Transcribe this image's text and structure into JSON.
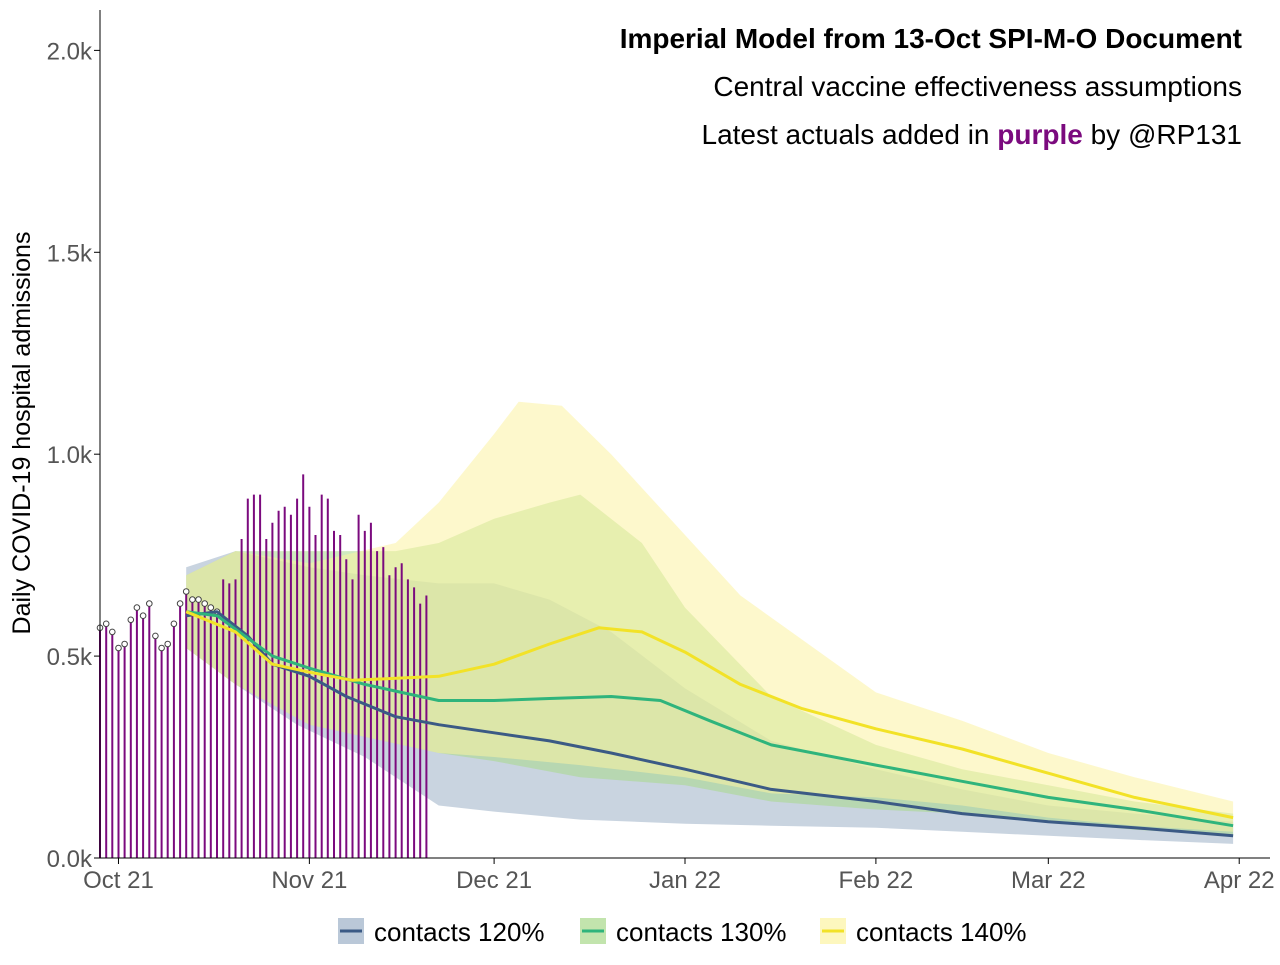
{
  "chart_data": {
    "type": "area",
    "title_lines": [
      "Imperial Model from 13-Oct SPI-M-O Document",
      "Central vaccine effectiveness assumptions"
    ],
    "subtitle_parts": {
      "before": "Latest actuals added in ",
      "highlight": "purple",
      "after": " by @RP131"
    },
    "xlabel": "",
    "ylabel": "Daily COVID-19 hospital admissions",
    "x_axis": {
      "type": "date",
      "range": [
        "2021-09-28",
        "2022-04-06"
      ],
      "ticks": [
        {
          "date": "2021-10-01",
          "label": "Oct 21"
        },
        {
          "date": "2021-11-01",
          "label": "Nov 21"
        },
        {
          "date": "2021-12-01",
          "label": "Dec 21"
        },
        {
          "date": "2022-01-01",
          "label": "Jan 22"
        },
        {
          "date": "2022-02-01",
          "label": "Feb 22"
        },
        {
          "date": "2022-03-01",
          "label": "Mar 22"
        },
        {
          "date": "2022-04-01",
          "label": "Apr 22"
        }
      ]
    },
    "y_axis": {
      "range": [
        0,
        2100
      ],
      "ticks": [
        {
          "value": 0,
          "label": "0.0k"
        },
        {
          "value": 500,
          "label": "0.5k"
        },
        {
          "value": 1000,
          "label": "1.0k"
        },
        {
          "value": 1500,
          "label": "1.5k"
        },
        {
          "value": 2000,
          "label": "2.0k"
        }
      ]
    },
    "grid": false,
    "legend_position": "bottom",
    "series": [
      {
        "name": "contacts 120%",
        "line_color": "#3b5a85",
        "band_color": "#9db1c7",
        "central": [
          [
            "2021-10-12",
            600
          ],
          [
            "2021-10-17",
            610
          ],
          [
            "2021-10-22",
            550
          ],
          [
            "2021-10-26",
            480
          ],
          [
            "2021-11-01",
            450
          ],
          [
            "2021-11-07",
            400
          ],
          [
            "2021-11-15",
            350
          ],
          [
            "2021-11-22",
            330
          ],
          [
            "2021-12-01",
            310
          ],
          [
            "2021-12-10",
            290
          ],
          [
            "2021-12-20",
            260
          ],
          [
            "2022-01-01",
            220
          ],
          [
            "2022-01-15",
            170
          ],
          [
            "2022-02-01",
            140
          ],
          [
            "2022-02-15",
            110
          ],
          [
            "2022-03-01",
            90
          ],
          [
            "2022-03-15",
            75
          ],
          [
            "2022-03-31",
            55
          ]
        ],
        "lower": [
          [
            "2021-10-12",
            520
          ],
          [
            "2021-10-20",
            430
          ],
          [
            "2021-10-30",
            330
          ],
          [
            "2021-11-10",
            250
          ],
          [
            "2021-11-22",
            130
          ],
          [
            "2021-12-01",
            115
          ],
          [
            "2021-12-15",
            95
          ],
          [
            "2022-01-01",
            85
          ],
          [
            "2022-01-15",
            80
          ],
          [
            "2022-02-01",
            75
          ],
          [
            "2022-02-15",
            65
          ],
          [
            "2022-03-01",
            55
          ],
          [
            "2022-03-15",
            45
          ],
          [
            "2022-03-31",
            35
          ]
        ],
        "upper": [
          [
            "2021-10-12",
            720
          ],
          [
            "2021-10-20",
            760
          ],
          [
            "2021-11-01",
            720
          ],
          [
            "2021-11-10",
            700
          ],
          [
            "2021-11-22",
            680
          ],
          [
            "2021-12-01",
            680
          ],
          [
            "2021-12-10",
            640
          ],
          [
            "2021-12-20",
            560
          ],
          [
            "2022-01-01",
            420
          ],
          [
            "2022-01-15",
            290
          ],
          [
            "2022-02-01",
            220
          ],
          [
            "2022-02-15",
            170
          ],
          [
            "2022-03-01",
            130
          ],
          [
            "2022-03-15",
            110
          ],
          [
            "2022-03-31",
            90
          ]
        ]
      },
      {
        "name": "contacts 130%",
        "line_color": "#2fb47c",
        "band_color": "#a8d98a",
        "central": [
          [
            "2021-10-12",
            610
          ],
          [
            "2021-10-17",
            600
          ],
          [
            "2021-10-26",
            500
          ],
          [
            "2021-11-01",
            470
          ],
          [
            "2021-11-10",
            430
          ],
          [
            "2021-11-22",
            390
          ],
          [
            "2021-12-01",
            390
          ],
          [
            "2021-12-10",
            395
          ],
          [
            "2021-12-20",
            400
          ],
          [
            "2021-12-28",
            390
          ],
          [
            "2022-01-05",
            340
          ],
          [
            "2022-01-15",
            280
          ],
          [
            "2022-02-01",
            230
          ],
          [
            "2022-02-15",
            190
          ],
          [
            "2022-03-01",
            150
          ],
          [
            "2022-03-15",
            120
          ],
          [
            "2022-03-31",
            80
          ]
        ],
        "lower": [
          [
            "2021-10-12",
            520
          ],
          [
            "2021-10-20",
            430
          ],
          [
            "2021-11-01",
            330
          ],
          [
            "2021-11-22",
            260
          ],
          [
            "2021-12-01",
            240
          ],
          [
            "2021-12-15",
            200
          ],
          [
            "2022-01-01",
            180
          ],
          [
            "2022-01-15",
            140
          ],
          [
            "2022-02-01",
            120
          ],
          [
            "2022-02-15",
            110
          ],
          [
            "2022-03-01",
            90
          ],
          [
            "2022-03-15",
            70
          ],
          [
            "2022-03-31",
            55
          ]
        ],
        "upper": [
          [
            "2021-10-12",
            700
          ],
          [
            "2021-10-20",
            760
          ],
          [
            "2021-11-01",
            760
          ],
          [
            "2021-11-15",
            760
          ],
          [
            "2021-11-22",
            780
          ],
          [
            "2021-12-01",
            840
          ],
          [
            "2021-12-10",
            880
          ],
          [
            "2021-12-15",
            900
          ],
          [
            "2021-12-25",
            780
          ],
          [
            "2022-01-01",
            620
          ],
          [
            "2022-01-15",
            400
          ],
          [
            "2022-02-01",
            280
          ],
          [
            "2022-02-15",
            220
          ],
          [
            "2022-03-01",
            180
          ],
          [
            "2022-03-15",
            140
          ],
          [
            "2022-03-31",
            110
          ]
        ]
      },
      {
        "name": "contacts 140%",
        "line_color": "#f2e227",
        "band_color": "#fcf3a3",
        "central": [
          [
            "2021-10-12",
            610
          ],
          [
            "2021-10-20",
            560
          ],
          [
            "2021-10-26",
            480
          ],
          [
            "2021-11-01",
            460
          ],
          [
            "2021-11-08",
            440
          ],
          [
            "2021-11-22",
            450
          ],
          [
            "2021-12-01",
            480
          ],
          [
            "2021-12-10",
            530
          ],
          [
            "2021-12-18",
            570
          ],
          [
            "2021-12-25",
            560
          ],
          [
            "2022-01-01",
            510
          ],
          [
            "2022-01-10",
            430
          ],
          [
            "2022-01-20",
            370
          ],
          [
            "2022-02-01",
            320
          ],
          [
            "2022-02-15",
            270
          ],
          [
            "2022-03-01",
            210
          ],
          [
            "2022-03-15",
            150
          ],
          [
            "2022-03-31",
            100
          ]
        ],
        "lower": [
          [
            "2021-10-12",
            520
          ],
          [
            "2021-10-20",
            430
          ],
          [
            "2021-11-01",
            330
          ],
          [
            "2021-11-22",
            260
          ],
          [
            "2021-12-01",
            250
          ],
          [
            "2021-12-15",
            230
          ],
          [
            "2022-01-01",
            200
          ],
          [
            "2022-01-15",
            160
          ],
          [
            "2022-02-01",
            150
          ],
          [
            "2022-02-15",
            130
          ],
          [
            "2022-03-01",
            100
          ],
          [
            "2022-03-15",
            80
          ],
          [
            "2022-03-31",
            65
          ]
        ],
        "upper": [
          [
            "2021-10-12",
            700
          ],
          [
            "2021-10-20",
            760
          ],
          [
            "2021-11-01",
            730
          ],
          [
            "2021-11-15",
            780
          ],
          [
            "2021-11-22",
            880
          ],
          [
            "2021-12-01",
            1050
          ],
          [
            "2021-12-05",
            1130
          ],
          [
            "2021-12-12",
            1120
          ],
          [
            "2021-12-20",
            1000
          ],
          [
            "2022-01-01",
            800
          ],
          [
            "2022-01-10",
            650
          ],
          [
            "2022-02-01",
            410
          ],
          [
            "2022-02-15",
            340
          ],
          [
            "2022-03-01",
            260
          ],
          [
            "2022-03-15",
            200
          ],
          [
            "2022-03-31",
            140
          ]
        ]
      }
    ],
    "actuals": {
      "color": "#7b0a7e",
      "style": "lollipop",
      "start_date": "2021-09-28",
      "values": [
        570,
        580,
        560,
        520,
        530,
        590,
        620,
        600,
        630,
        550,
        520,
        530,
        580,
        630,
        660,
        640,
        640,
        630,
        620,
        610,
        690,
        680,
        690,
        790,
        890,
        900,
        900,
        790,
        830,
        860,
        870,
        850,
        890,
        950,
        870,
        800,
        900,
        890,
        810,
        800,
        740,
        690,
        850,
        810,
        830,
        760,
        770,
        700,
        720,
        730,
        690,
        670,
        630,
        650
      ]
    }
  }
}
